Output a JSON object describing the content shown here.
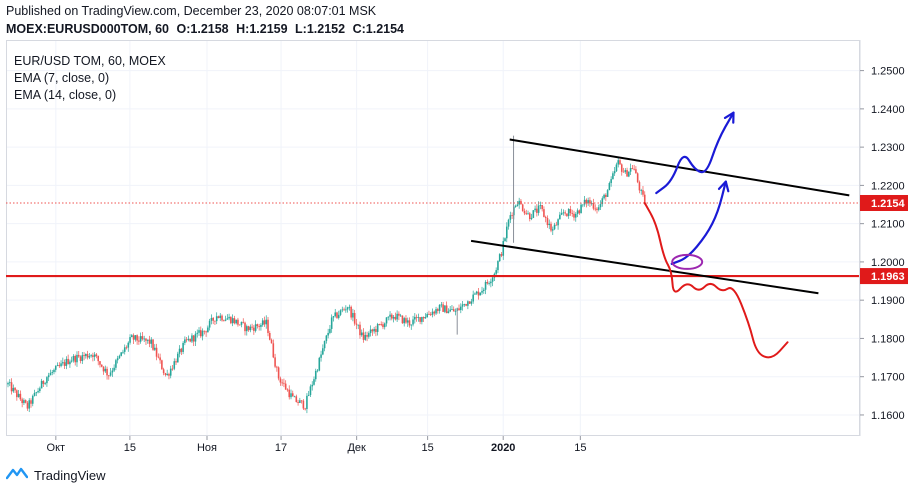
{
  "header": {
    "published": "Published on TradingView.com, December 23, 2020 08:07:01 MSK",
    "symbol": "MOEX:EURUSD000TOM, 60",
    "o_label": "O:",
    "o": "1.2158",
    "h_label": "H:",
    "h": "1.2159",
    "l_label": "L:",
    "l": "1.2152",
    "c_label": "C:",
    "c": "1.2154"
  },
  "legend": {
    "instrument": "EUR/USD TOM, 60, MOEX",
    "ema1": "EMA (7, close, 0)",
    "ema2": "EMA (14, close, 0)"
  },
  "footer": {
    "brand": "TradingView",
    "icon": "tradingview-logo-icon"
  },
  "colors": {
    "up": "#26a69a",
    "down": "#ef5350",
    "level": "#e01a1a",
    "annot_blue": "#1a1ad6",
    "annot_red": "#e01a1a",
    "annot_purple": "#9c27b0",
    "grid": "#f0f3fa",
    "axis": "#d6d9e0"
  },
  "chart_data": {
    "type": "candlestick",
    "timeframe": "60",
    "x_ticks": [
      "Окт",
      "15",
      "Ноя",
      "17",
      "Дек",
      "15",
      "2020",
      "15"
    ],
    "y_ticks": [
      "1.2500",
      "1.2400",
      "1.2300",
      "1.2200",
      "1.2100",
      "1.2000",
      "1.1900",
      "1.1800",
      "1.1700",
      "1.1600"
    ],
    "ylim": [
      1.1545,
      1.258
    ],
    "grid": true,
    "current_price": {
      "value": 1.2154,
      "label": "1.2154"
    },
    "horizontal_level": {
      "value": 1.1963,
      "label": "1.1963"
    },
    "price_path": [
      {
        "x": 0.0,
        "y": 1.168
      },
      {
        "x": 2.5,
        "y": 1.162
      },
      {
        "x": 5.0,
        "y": 1.17
      },
      {
        "x": 8.0,
        "y": 1.1745
      },
      {
        "x": 11.0,
        "y": 1.176
      },
      {
        "x": 13.0,
        "y": 1.1705
      },
      {
        "x": 16.0,
        "y": 1.18
      },
      {
        "x": 18.5,
        "y": 1.179
      },
      {
        "x": 20.5,
        "y": 1.17
      },
      {
        "x": 23.0,
        "y": 1.179
      },
      {
        "x": 25.5,
        "y": 1.182
      },
      {
        "x": 27.0,
        "y": 1.186
      },
      {
        "x": 29.0,
        "y": 1.185
      },
      {
        "x": 31.0,
        "y": 1.1825
      },
      {
        "x": 33.5,
        "y": 1.184
      },
      {
        "x": 35.0,
        "y": 1.17
      },
      {
        "x": 37.0,
        "y": 1.164
      },
      {
        "x": 38.5,
        "y": 1.1625
      },
      {
        "x": 40.0,
        "y": 1.172
      },
      {
        "x": 42.0,
        "y": 1.185
      },
      {
        "x": 44.0,
        "y": 1.1885
      },
      {
        "x": 46.0,
        "y": 1.18
      },
      {
        "x": 48.0,
        "y": 1.183
      },
      {
        "x": 50.0,
        "y": 1.186
      },
      {
        "x": 52.0,
        "y": 1.184
      },
      {
        "x": 54.0,
        "y": 1.186
      },
      {
        "x": 56.0,
        "y": 1.188
      },
      {
        "x": 58.0,
        "y": 1.187
      },
      {
        "x": 60.0,
        "y": 1.1905
      },
      {
        "x": 61.5,
        "y": 1.193
      },
      {
        "x": 63.0,
        "y": 1.197
      },
      {
        "x": 64.0,
        "y": 1.203
      },
      {
        "x": 65.0,
        "y": 1.212
      },
      {
        "x": 66.0,
        "y": 1.216
      },
      {
        "x": 67.5,
        "y": 1.212
      },
      {
        "x": 69.0,
        "y": 1.214
      },
      {
        "x": 70.5,
        "y": 1.208
      },
      {
        "x": 72.0,
        "y": 1.213
      },
      {
        "x": 73.5,
        "y": 1.2125
      },
      {
        "x": 75.0,
        "y": 1.216
      },
      {
        "x": 76.5,
        "y": 1.214
      },
      {
        "x": 78.0,
        "y": 1.22
      },
      {
        "x": 79.0,
        "y": 1.226
      },
      {
        "x": 80.0,
        "y": 1.223
      },
      {
        "x": 81.0,
        "y": 1.225
      },
      {
        "x": 82.0,
        "y": 1.218
      },
      {
        "x": 82.5,
        "y": 1.2154
      }
    ],
    "spikes": [
      {
        "x": 65.5,
        "y_low": 1.205,
        "y_high": 1.233
      },
      {
        "x": 58.2,
        "y_low": 1.181,
        "y_high": 1.188
      }
    ],
    "channel_upper": [
      {
        "x": 65.0,
        "y": 1.232
      },
      {
        "x": 109.0,
        "y": 1.2174
      }
    ],
    "channel_lower": [
      {
        "x": 60.0,
        "y": 1.2055
      },
      {
        "x": 105.0,
        "y": 1.1918
      }
    ],
    "annotations": {
      "blue_up_path": [
        {
          "x": 84.0,
          "y": 1.218
        },
        {
          "x": 86.0,
          "y": 1.221
        },
        {
          "x": 87.5,
          "y": 1.229
        },
        {
          "x": 89.0,
          "y": 1.224
        },
        {
          "x": 90.5,
          "y": 1.223
        },
        {
          "x": 92.0,
          "y": 1.232
        },
        {
          "x": 94.0,
          "y": 1.239
        }
      ],
      "blue_bounce_path": [
        {
          "x": 86.0,
          "y": 1.1995
        },
        {
          "x": 88.0,
          "y": 1.201
        },
        {
          "x": 90.5,
          "y": 1.207
        },
        {
          "x": 92.0,
          "y": 1.213
        },
        {
          "x": 93.0,
          "y": 1.221
        }
      ],
      "red_down_path": [
        {
          "x": 82.5,
          "y": 1.2154
        },
        {
          "x": 84.0,
          "y": 1.21
        },
        {
          "x": 85.0,
          "y": 1.201
        },
        {
          "x": 86.0,
          "y": 1.1975
        },
        {
          "x": 86.2,
          "y": 1.191
        },
        {
          "x": 88.0,
          "y": 1.195
        },
        {
          "x": 89.5,
          "y": 1.192
        },
        {
          "x": 91.0,
          "y": 1.195
        },
        {
          "x": 92.5,
          "y": 1.192
        },
        {
          "x": 94.0,
          "y": 1.194
        },
        {
          "x": 96.0,
          "y": 1.184
        },
        {
          "x": 97.0,
          "y": 1.176
        },
        {
          "x": 99.0,
          "y": 1.1745
        },
        {
          "x": 101.0,
          "y": 1.179
        }
      ],
      "purple_ellipse": {
        "x": 88.0,
        "y": 1.2
      }
    }
  }
}
